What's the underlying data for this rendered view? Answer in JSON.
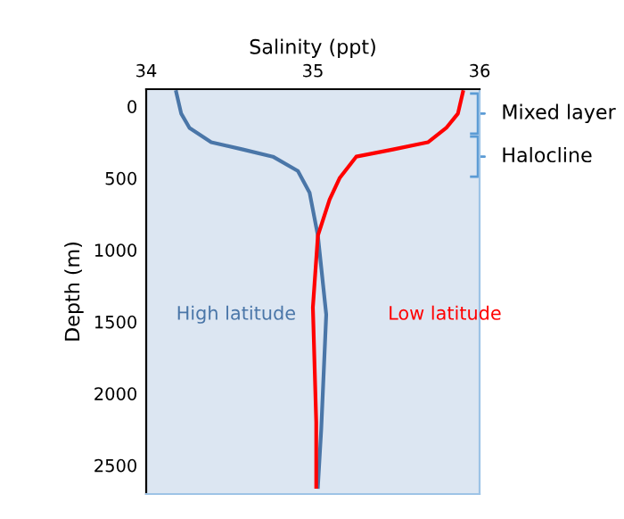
{
  "chart_data": {
    "type": "line",
    "xlabel": "Salinity (ppt)",
    "ylabel": "Depth (m)",
    "xlim": [
      34,
      36
    ],
    "xticks": [
      34,
      35,
      36
    ],
    "ylim": [
      2700,
      -120
    ],
    "yticks": [
      0,
      500,
      1000,
      1500,
      2000,
      2500
    ],
    "grid": false,
    "legend": false,
    "marker": "none",
    "line_style": "solid",
    "series": [
      {
        "name": "High latitude",
        "color": "#4a76a8",
        "x": [
          34.18,
          34.21,
          34.26,
          34.39,
          34.58,
          34.76,
          34.91,
          34.98,
          35.03,
          35.08,
          35.05,
          35.03
        ],
        "values": [
          -100,
          50,
          150,
          250,
          300,
          350,
          450,
          600,
          900,
          1450,
          2250,
          2650
        ]
      },
      {
        "name": "Low latitude",
        "color": "#ff0000",
        "x": [
          35.9,
          35.87,
          35.8,
          35.69,
          35.48,
          35.26,
          35.16,
          35.1,
          35.03,
          35.0,
          35.02,
          35.02
        ],
        "values": [
          -100,
          50,
          150,
          250,
          300,
          350,
          500,
          650,
          900,
          1400,
          2200,
          2650
        ]
      }
    ],
    "annotations": [
      {
        "text": "Mixed layer",
        "x": 36,
        "y": 50
      },
      {
        "text": "Halocline",
        "x": 36,
        "y": 350
      }
    ]
  }
}
